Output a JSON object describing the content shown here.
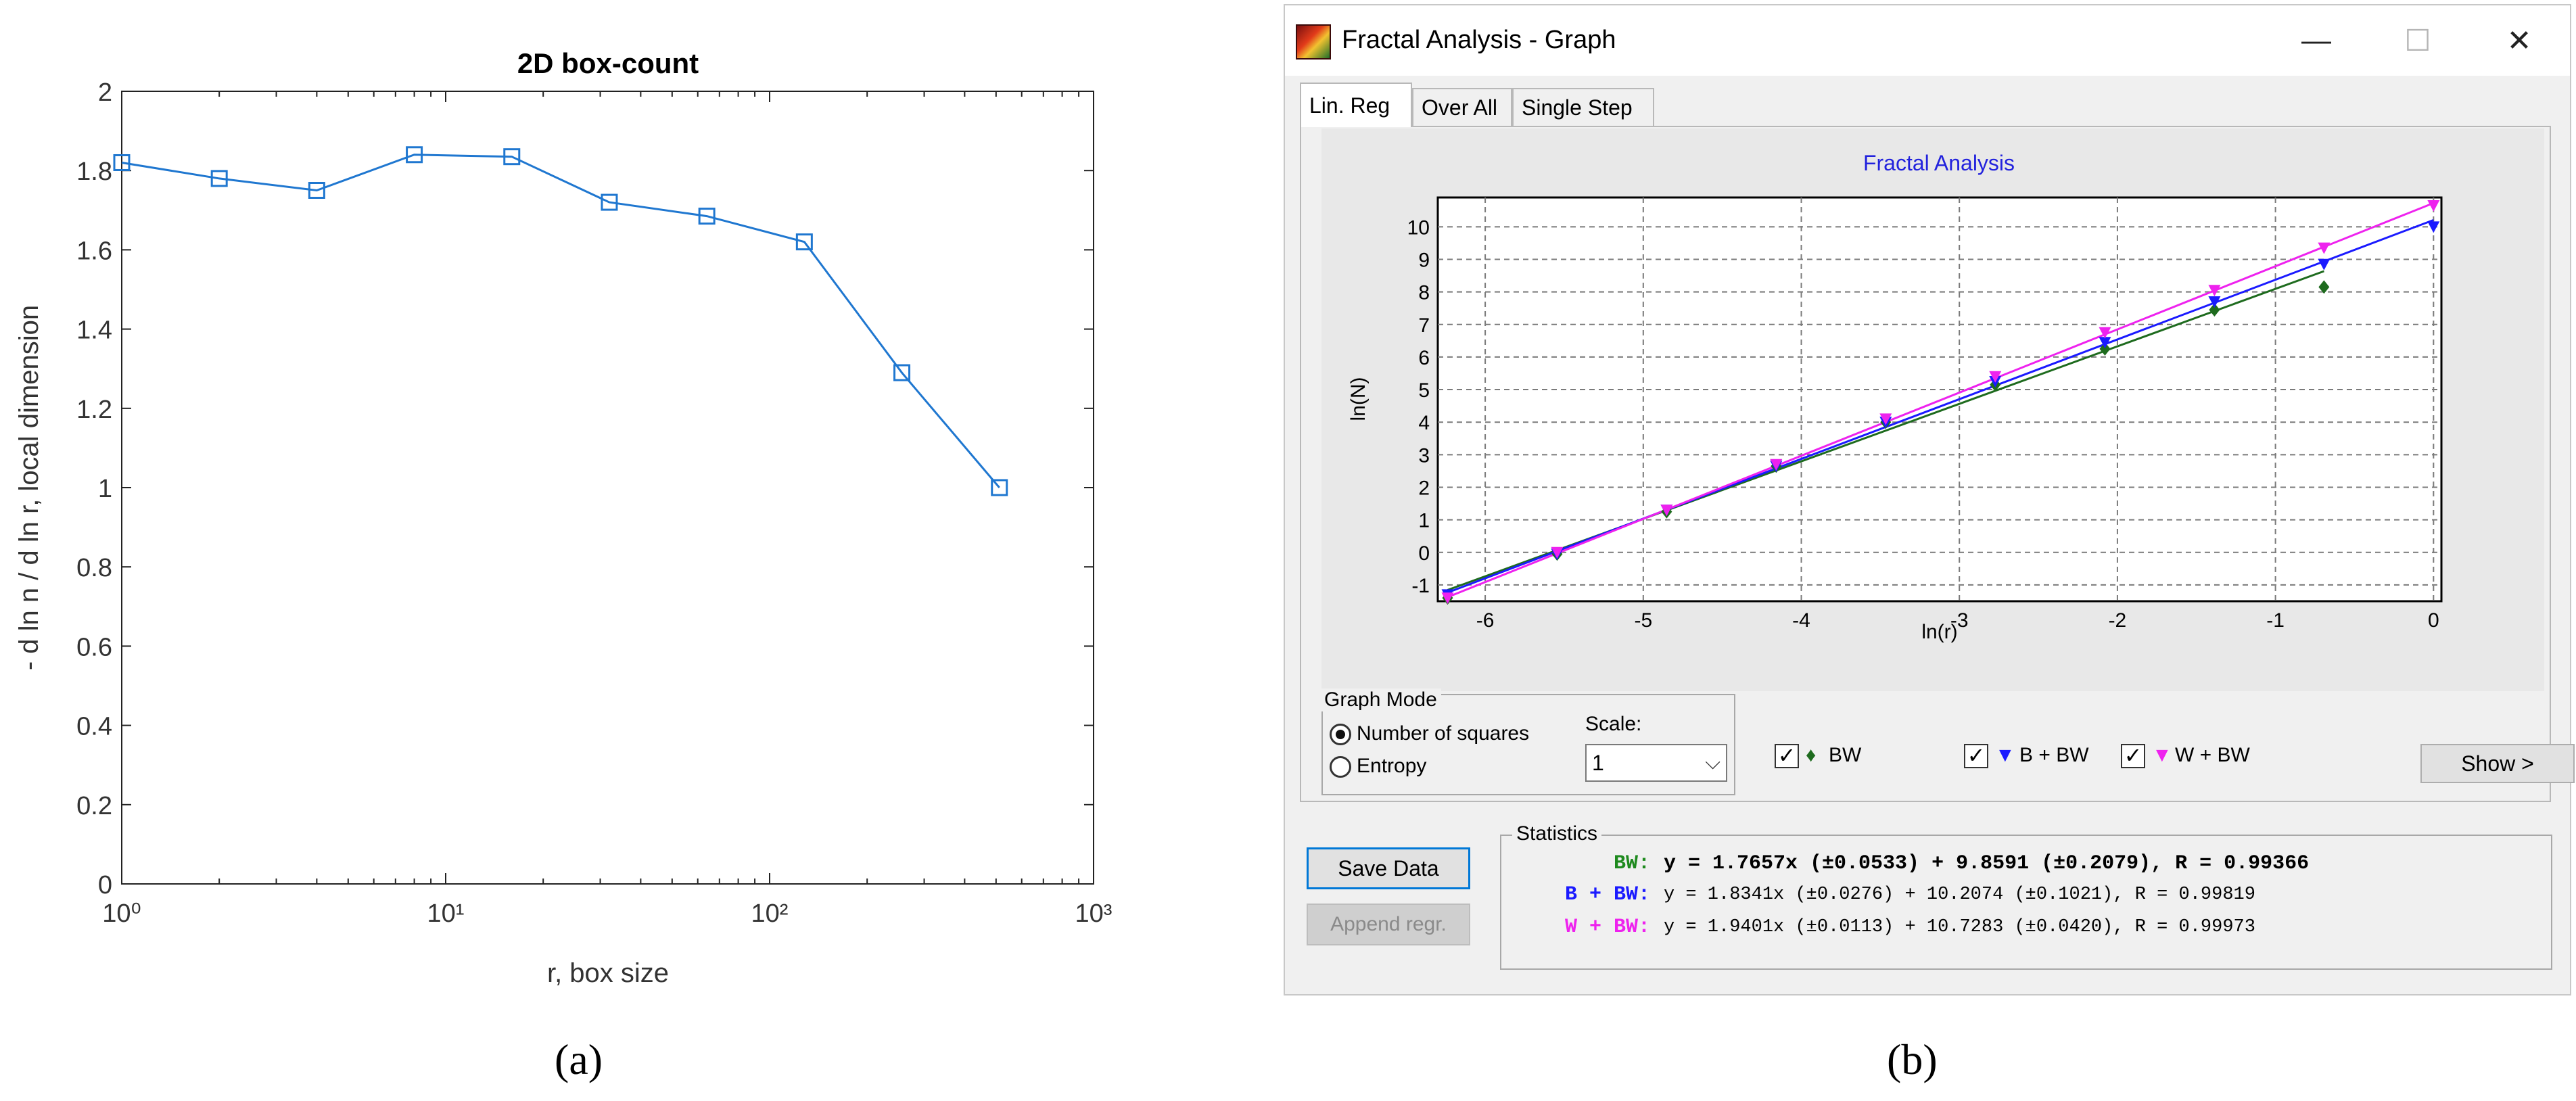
{
  "chart_data": [
    {
      "type": "line",
      "title": "2D box-count",
      "xlabel": "r, box size",
      "ylabel": "- d ln n / d ln r, local dimension",
      "xscale": "log",
      "xlim": [
        1,
        1000
      ],
      "ylim": [
        0,
        2
      ],
      "xticks": [
        "10⁰",
        "10¹",
        "10²",
        "10³"
      ],
      "yticks": [
        "0",
        "0.2",
        "0.4",
        "0.6",
        "0.8",
        "1",
        "1.2",
        "1.4",
        "1.6",
        "1.8",
        "2"
      ],
      "marker": "square",
      "color": "#1f77d0",
      "grid": false,
      "x": [
        1,
        2,
        4,
        8,
        16,
        32,
        64,
        128,
        256,
        512
      ],
      "y": [
        1.82,
        1.78,
        1.75,
        1.84,
        1.835,
        1.72,
        1.685,
        1.62,
        1.29,
        1.0
      ]
    },
    {
      "type": "scatter",
      "title": "Fractal Analysis",
      "xlabel": "ln(r)",
      "ylabel": "ln(N)",
      "xlim": [
        -6.3,
        0.05
      ],
      "ylim": [
        -1.5,
        10.9
      ],
      "xticks": [
        "-6",
        "-5",
        "-4",
        "-3",
        "-2",
        "-1",
        "0"
      ],
      "yticks": [
        "-1",
        "0",
        "1",
        "2",
        "3",
        "4",
        "5",
        "6",
        "7",
        "8",
        "9",
        "10"
      ],
      "grid": true,
      "x": [
        -6.238,
        -5.545,
        -4.852,
        -4.159,
        -3.466,
        -2.773,
        -2.079,
        -1.386,
        -0.693,
        0
      ],
      "series": [
        {
          "name": "BW",
          "color": "#1e6b1e",
          "marker": "diamond",
          "y": [
            -1.4,
            -0.05,
            1.25,
            2.65,
            4.0,
            5.15,
            6.25,
            7.45,
            8.15,
            null
          ],
          "fit": {
            "slope": 1.7657,
            "intercept": 9.8591,
            "x_end": -0.693
          }
        },
        {
          "name": "B + BW",
          "color": "#1a1aff",
          "marker": "triangle-down",
          "y": [
            -1.3,
            -0.05,
            1.3,
            2.65,
            4.0,
            5.25,
            6.45,
            7.7,
            8.85,
            10.0
          ],
          "fit": {
            "slope": 1.8341,
            "intercept": 10.2074,
            "x_end": 0
          }
        },
        {
          "name": "W + BW",
          "color": "#ee22ee",
          "marker": "triangle-down",
          "y": [
            -1.4,
            0.0,
            1.3,
            2.7,
            4.1,
            5.4,
            6.75,
            8.05,
            9.35,
            10.65
          ],
          "fit": {
            "slope": 1.9401,
            "intercept": 10.7283,
            "x_end": 0
          }
        }
      ]
    }
  ],
  "captions": {
    "a": "(a)",
    "b": "(b)"
  },
  "window": {
    "title": "Fractal Analysis - Graph",
    "minimize": "—",
    "maximize": "☐",
    "close": "✕",
    "tabs": [
      "Lin. Reg",
      "Over All",
      "Single Step"
    ]
  },
  "graph_mode": {
    "legend": "Graph Mode",
    "options": [
      "Number of squares",
      "Entropy"
    ],
    "selected": "Number of squares",
    "scale_label": "Scale:",
    "scale_value": "1"
  },
  "legend_items": [
    {
      "check": "✓",
      "marker": "♦",
      "label": "BW",
      "color": "#1e6b1e"
    },
    {
      "check": "✓",
      "marker": "▼",
      "label": "B + BW",
      "color": "#1a1aff"
    },
    {
      "check": "✓",
      "marker": "▼",
      "label": "W + BW",
      "color": "#ee22ee"
    }
  ],
  "show_button": "Show >",
  "save_button": "Save Data",
  "append_button": "Append regr.",
  "statistics": {
    "legend": "Statistics",
    "rows": [
      {
        "name": "BW:",
        "color": "#1e8a1e",
        "eq": "y = 1.7657x (±0.0533) +  9.8591 (±0.2079), R = 0.99366"
      },
      {
        "name": "B + BW:",
        "color": "#1a1aff",
        "eq": "y = 1.8341x (±0.0276) + 10.2074 (±0.1021), R = 0.99819"
      },
      {
        "name": "W + BW:",
        "color": "#ee22ee",
        "eq": "y = 1.9401x (±0.0113) + 10.7283 (±0.0420), R = 0.99973"
      }
    ]
  }
}
